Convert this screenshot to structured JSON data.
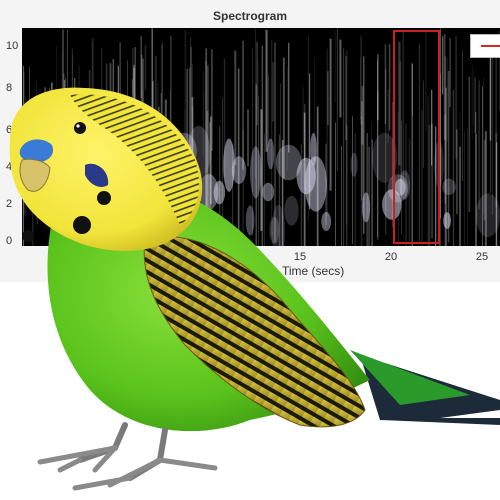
{
  "spectrogram": {
    "title": "Spectrogram",
    "y_ticks": [
      "0",
      "2",
      "4",
      "6",
      "8",
      "10"
    ],
    "x_ticks": [
      "15",
      "20",
      "25"
    ],
    "x_label": "Time (secs)",
    "legend_color": "#d62728",
    "highlight_color": "#cc1f1f"
  },
  "bird": {
    "species_icon": "budgerigar",
    "body_color": "#5ac21c",
    "head_color": "#f1e43a",
    "cere_color": "#3a7bd5"
  }
}
